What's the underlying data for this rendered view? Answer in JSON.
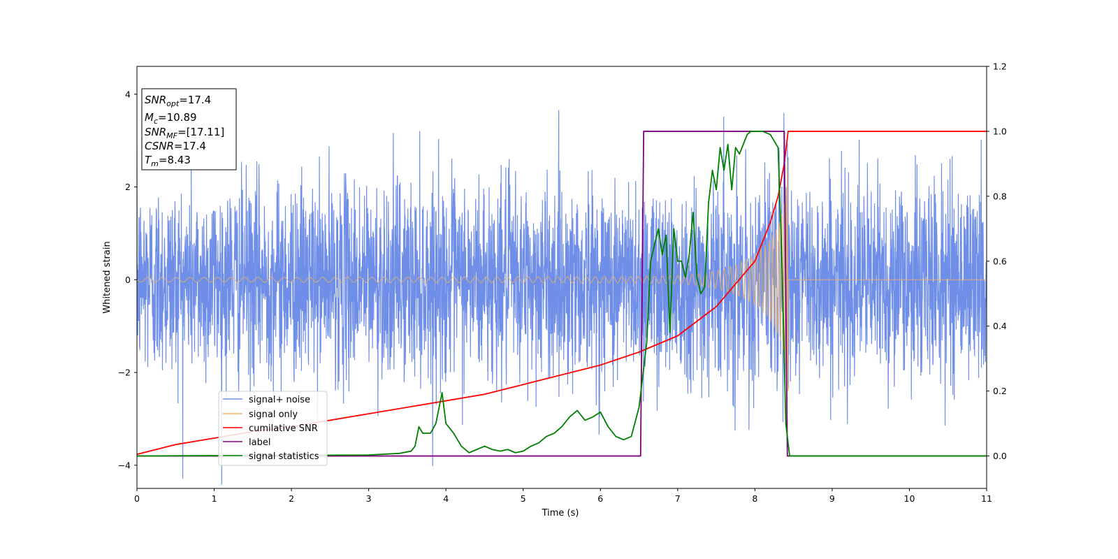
{
  "chart_data": {
    "type": "line",
    "xlabel": "Time (s)",
    "ylabel": "Whitened strain",
    "xlim": [
      0,
      11
    ],
    "ylim_left": [
      -4.5,
      4.6
    ],
    "ylim_right": [
      -0.1,
      1.2
    ],
    "x_ticks": [
      "0",
      "1",
      "2",
      "3",
      "4",
      "5",
      "6",
      "7",
      "8",
      "9",
      "10",
      "11"
    ],
    "y_left_ticks": [
      "4",
      "2",
      "0",
      "−2",
      "−4"
    ],
    "y_right_ticks": [
      "1.2",
      "1.0",
      "0.8",
      "0.6",
      "0.4",
      "0.2",
      "0.0"
    ],
    "grid": false,
    "legend_position": "lower-left",
    "annotation": {
      "snr_opt": {
        "label": "SNR",
        "sub": "opt",
        "value": "=17.4"
      },
      "mc": {
        "label": "M",
        "sub": "c",
        "value": "=10.89"
      },
      "snr_mf": {
        "label": "SNR",
        "sub": "MF",
        "value": "=[17.11]"
      },
      "csnr": {
        "label": "CSNR",
        "value": "=17.4"
      },
      "tm": {
        "label": "T",
        "sub": "m",
        "value": "=8.43"
      }
    },
    "series": [
      {
        "name": "signal+ noise",
        "axis": "left",
        "color": "#6f8ee8",
        "noise_std": 1.0,
        "t_end": 11
      },
      {
        "name": "signal only",
        "axis": "left",
        "color": "#e8b06a",
        "chirp_start_amp": 0.05,
        "merger_time": 8.43,
        "peak_amp": 3.1
      },
      {
        "name": "cumilative SNR",
        "axis": "right",
        "color": "#ff0000",
        "x": [
          0,
          0.5,
          1,
          1.5,
          2,
          2.5,
          3,
          3.5,
          4,
          4.5,
          5,
          5.5,
          6,
          6.5,
          7,
          7.5,
          8,
          8.2,
          8.3,
          8.38,
          8.43,
          11
        ],
        "y": [
          0.005,
          0.035,
          0.055,
          0.075,
          0.09,
          0.11,
          0.13,
          0.15,
          0.17,
          0.19,
          0.22,
          0.25,
          0.28,
          0.32,
          0.37,
          0.46,
          0.6,
          0.72,
          0.8,
          0.9,
          1.0,
          1.0
        ]
      },
      {
        "name": "label",
        "axis": "right",
        "color": "#800080",
        "x": [
          0,
          6.52,
          6.56,
          8.38,
          8.42,
          11
        ],
        "y": [
          0,
          0,
          1,
          1,
          0,
          0
        ]
      },
      {
        "name": "signal statistics",
        "axis": "right",
        "color": "#008000",
        "x": [
          0,
          3.0,
          3.4,
          3.55,
          3.6,
          3.65,
          3.7,
          3.8,
          3.87,
          3.95,
          4.0,
          4.1,
          4.2,
          4.3,
          4.4,
          4.5,
          4.6,
          4.7,
          4.8,
          4.9,
          5.0,
          5.1,
          5.2,
          5.3,
          5.4,
          5.5,
          5.6,
          5.7,
          5.8,
          5.9,
          6.0,
          6.1,
          6.2,
          6.3,
          6.4,
          6.5,
          6.6,
          6.65,
          6.7,
          6.75,
          6.8,
          6.85,
          6.9,
          6.95,
          7.0,
          7.05,
          7.1,
          7.15,
          7.2,
          7.25,
          7.3,
          7.35,
          7.4,
          7.45,
          7.5,
          7.55,
          7.6,
          7.65,
          7.7,
          7.75,
          7.8,
          7.85,
          7.9,
          7.95,
          8.0,
          8.1,
          8.2,
          8.3,
          8.35,
          8.4,
          8.45,
          8.5,
          8.55,
          11
        ],
        "y": [
          0,
          0.003,
          0.008,
          0.015,
          0.03,
          0.09,
          0.07,
          0.07,
          0.1,
          0.195,
          0.1,
          0.07,
          0.03,
          0.01,
          0.02,
          0.03,
          0.02,
          0.015,
          0.02,
          0.01,
          0.015,
          0.03,
          0.04,
          0.06,
          0.07,
          0.09,
          0.12,
          0.14,
          0.11,
          0.12,
          0.135,
          0.09,
          0.06,
          0.05,
          0.06,
          0.15,
          0.35,
          0.6,
          0.65,
          0.7,
          0.62,
          0.68,
          0.38,
          0.7,
          0.6,
          0.6,
          0.55,
          0.62,
          0.75,
          0.55,
          0.5,
          0.52,
          0.78,
          0.88,
          0.82,
          0.95,
          0.88,
          0.96,
          0.82,
          0.95,
          0.93,
          0.96,
          0.99,
          1.0,
          1.0,
          1.0,
          0.99,
          0.95,
          0.6,
          0.1,
          0.0,
          0.0,
          0.0,
          0.0
        ]
      }
    ]
  }
}
